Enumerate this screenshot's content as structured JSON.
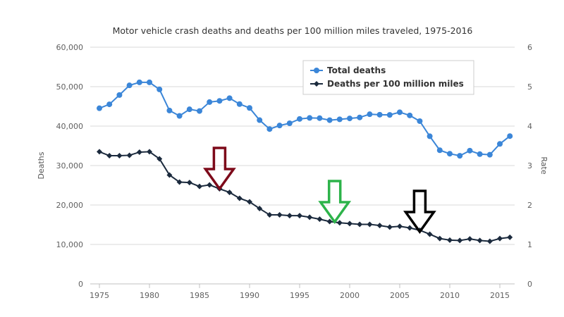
{
  "chart_data": {
    "type": "line",
    "title": "Motor vehicle crash deaths and deaths per 100 million miles traveled, 1975-2016",
    "ylabel": "Deaths",
    "y2label": "Rate",
    "ylim": [
      0,
      60000
    ],
    "y2lim": [
      0,
      6
    ],
    "yticks": [
      "0",
      "10,000",
      "20,000",
      "30,000",
      "40,000",
      "50,000",
      "60,000"
    ],
    "y2ticks": [
      "0",
      "1",
      "2",
      "3",
      "4",
      "5",
      "6"
    ],
    "xticks": [
      "1975",
      "1980",
      "1985",
      "1990",
      "1995",
      "2000",
      "2005",
      "2010",
      "2015"
    ],
    "grid": true,
    "legend_placement": "top-center",
    "x": [
      1975,
      1976,
      1977,
      1978,
      1979,
      1980,
      1981,
      1982,
      1983,
      1984,
      1985,
      1986,
      1987,
      1988,
      1989,
      1990,
      1991,
      1992,
      1993,
      1994,
      1995,
      1996,
      1997,
      1998,
      1999,
      2000,
      2001,
      2002,
      2003,
      2004,
      2005,
      2006,
      2007,
      2008,
      2009,
      2010,
      2011,
      2012,
      2013,
      2014,
      2015,
      2016
    ],
    "series": [
      {
        "name": "Total deaths",
        "axis": "left",
        "color": "#3b86d8",
        "marker": "circle",
        "values": [
          44525,
          45523,
          47878,
          50331,
          51093,
          51091,
          49301,
          43945,
          42589,
          44257,
          43825,
          46087,
          46390,
          47087,
          45582,
          44599,
          41508,
          39250,
          40150,
          40716,
          41817,
          42065,
          42013,
          41501,
          41717,
          41945,
          42196,
          43005,
          42884,
          42836,
          43510,
          42708,
          41259,
          37423,
          33883,
          32999,
          32479,
          33782,
          32893,
          32744,
          35484,
          37461
        ]
      },
      {
        "name": "Deaths per 100 million miles",
        "axis": "right",
        "color": "#1b2a3d",
        "marker": "diamond",
        "values": [
          3.35,
          3.25,
          3.25,
          3.26,
          3.34,
          3.35,
          3.17,
          2.76,
          2.58,
          2.57,
          2.47,
          2.51,
          2.41,
          2.32,
          2.17,
          2.08,
          1.91,
          1.75,
          1.75,
          1.73,
          1.73,
          1.69,
          1.64,
          1.58,
          1.55,
          1.53,
          1.51,
          1.51,
          1.48,
          1.44,
          1.46,
          1.42,
          1.36,
          1.26,
          1.15,
          1.11,
          1.1,
          1.14,
          1.1,
          1.08,
          1.15,
          1.18
        ]
      }
    ],
    "annotations": [
      {
        "type": "arrow-down",
        "color": "#7d0a1a",
        "x": 1987
      },
      {
        "type": "arrow-down",
        "color": "#2db34a",
        "x": 1998.5
      },
      {
        "type": "arrow-down",
        "color": "#000000",
        "x": 2007
      }
    ]
  }
}
